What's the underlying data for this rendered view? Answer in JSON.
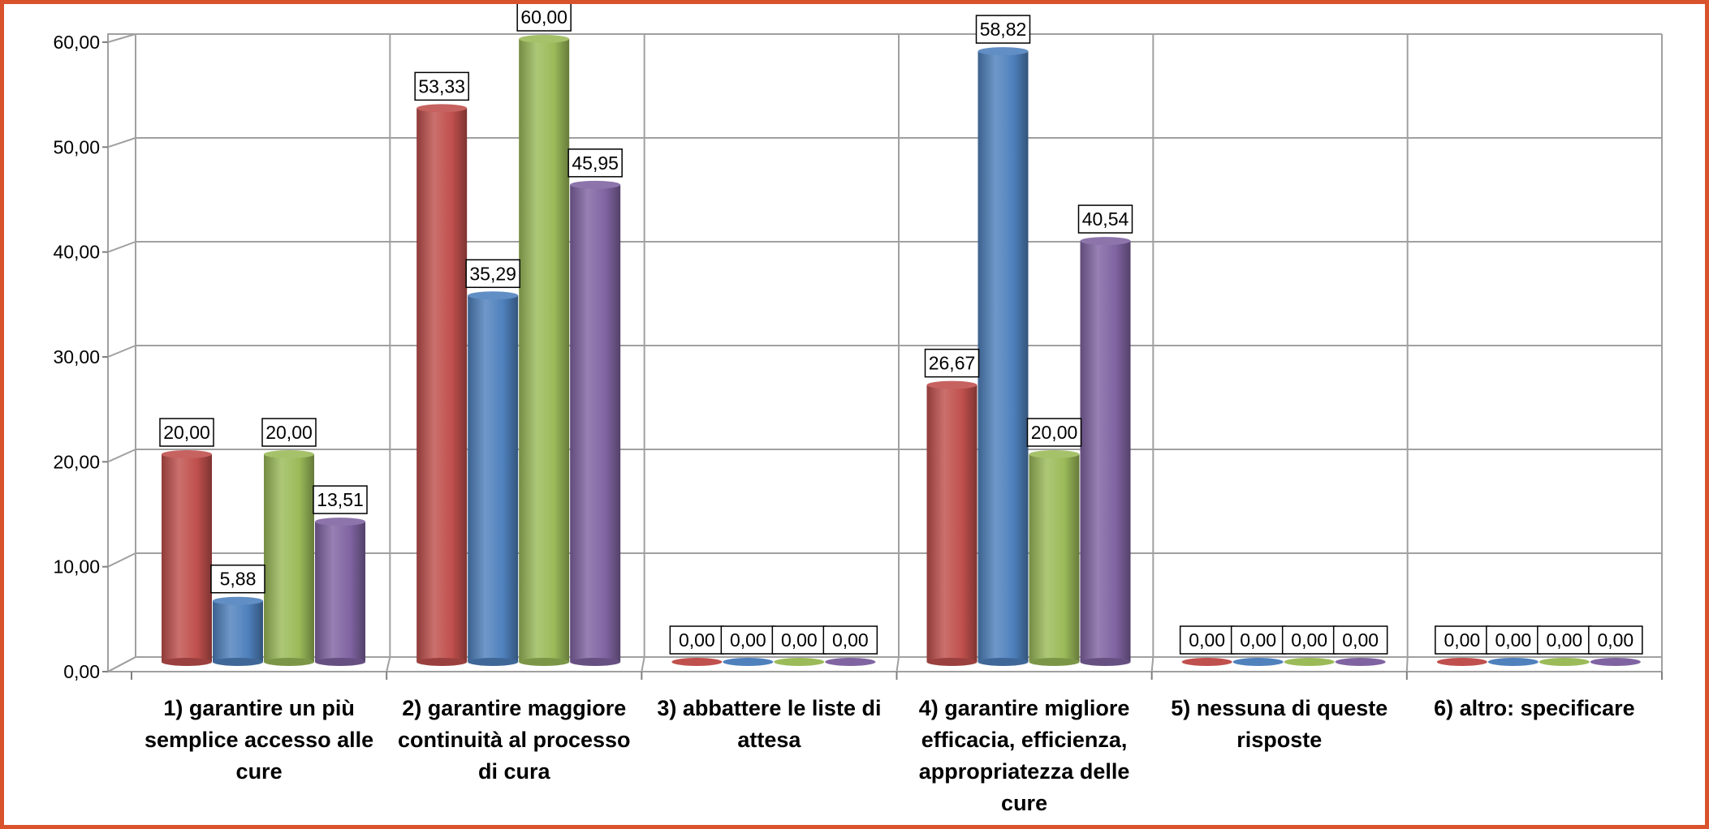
{
  "chart_data": {
    "type": "bar",
    "title": "",
    "xlabel": "",
    "ylabel": "",
    "ylim": [
      0,
      60
    ],
    "yticks": [
      "0,00",
      "10,00",
      "20,00",
      "30,00",
      "40,00",
      "50,00",
      "60,00"
    ],
    "grid": true,
    "legend": "none",
    "categories": [
      "1) garantire un più semplice accesso alle cure",
      "2) garantire maggiore continuità al processo di cura",
      "3) abbattere le liste di attesa",
      "4) garantire migliore efficacia, efficienza, appropriatezza delle cure",
      "5)  nessuna di queste risposte",
      "6) altro: specificare"
    ],
    "series": [
      {
        "color": "#c0504d",
        "values": [
          20.0,
          53.33,
          0.0,
          26.67,
          0.0,
          0.0
        ],
        "labels": [
          "20,00",
          "53,33",
          "0,00",
          "26,67",
          "0,00",
          "0,00"
        ]
      },
      {
        "color": "#4f81bd",
        "values": [
          5.88,
          35.29,
          0.0,
          58.82,
          0.0,
          0.0
        ],
        "labels": [
          "5,88",
          "35,29",
          "0,00",
          "58,82",
          "0,00",
          "0,00"
        ]
      },
      {
        "color": "#9bbb59",
        "values": [
          20.0,
          60.0,
          0.0,
          20.0,
          0.0,
          0.0
        ],
        "labels": [
          "20,00",
          "60,00",
          "0,00",
          "20,00",
          "0,00",
          "0,00"
        ]
      },
      {
        "color": "#8064a2",
        "values": [
          13.51,
          45.95,
          0.0,
          40.54,
          0.0,
          0.0
        ],
        "labels": [
          "13,51",
          "45,95",
          "0,00",
          "40,54",
          "0,00",
          "0,00"
        ]
      }
    ]
  },
  "frame_color": "#d8532b"
}
